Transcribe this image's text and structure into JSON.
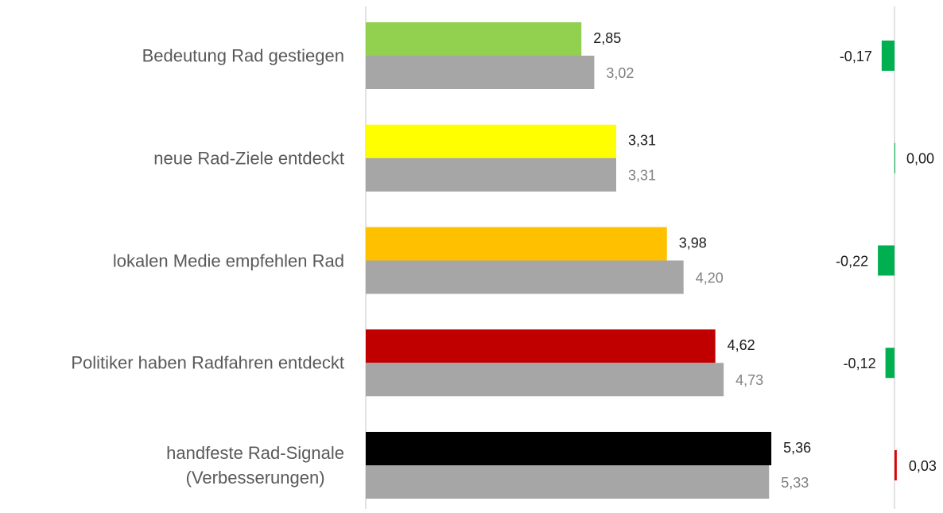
{
  "chart_data": [
    {
      "type": "bar",
      "orientation": "horizontal",
      "categories": [
        "Bedeutung Rad gestiegen",
        "neue Rad-Ziele entdeckt",
        "lokalen Medie empfehlen Rad",
        "Politiker haben Radfahren entdeckt",
        "handfeste Rad-Signale\n(Verbesserungen)"
      ],
      "xlim": [
        0,
        6
      ],
      "series": [
        {
          "colors": [
            "#92d050",
            "#ffff00",
            "#ffc000",
            "#c00000",
            "#000000"
          ],
          "values": [
            2.85,
            3.31,
            3.98,
            4.62,
            5.36
          ],
          "value_labels": [
            "2,85",
            "3,31",
            "3,98",
            "4,62",
            "5,36"
          ]
        },
        {
          "color": "#a6a6a6",
          "values": [
            3.02,
            3.31,
            4.2,
            4.73,
            5.33
          ],
          "value_labels": [
            "3,02",
            "3,31",
            "4,20",
            "4,73",
            "5,33"
          ]
        }
      ]
    },
    {
      "type": "bar",
      "orientation": "horizontal",
      "xlim": [
        -0.5,
        0.5
      ],
      "colors": [
        "#00b050",
        "#00b050",
        "#00b050",
        "#00b050",
        "#e00000"
      ],
      "values": [
        -0.17,
        0.0,
        -0.22,
        -0.12,
        0.03
      ],
      "value_labels": [
        "-0,17",
        "0,00",
        "-0,22",
        "-0,12",
        "0,03"
      ]
    }
  ]
}
